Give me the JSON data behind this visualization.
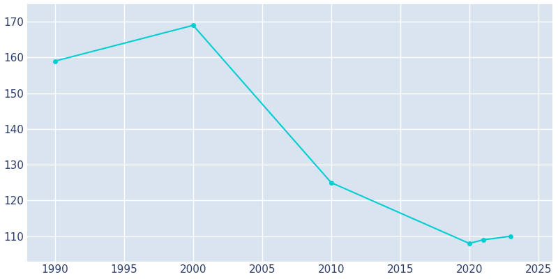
{
  "years": [
    1990,
    2000,
    2010,
    2020,
    2021,
    2023
  ],
  "population": [
    159,
    169,
    125,
    108,
    109,
    110
  ],
  "line_color": "#00CED1",
  "marker_color": "#00CED1",
  "axes_background_color": "#dae4f0",
  "figure_background_color": "#ffffff",
  "grid_color": "#ffffff",
  "tick_label_color": "#2e3f6e",
  "xlim": [
    1988,
    2026
  ],
  "ylim": [
    103,
    175
  ],
  "xticks": [
    1990,
    1995,
    2000,
    2005,
    2010,
    2015,
    2020,
    2025
  ],
  "yticks": [
    110,
    120,
    130,
    140,
    150,
    160,
    170
  ],
  "line_width": 1.5,
  "marker_size": 4
}
